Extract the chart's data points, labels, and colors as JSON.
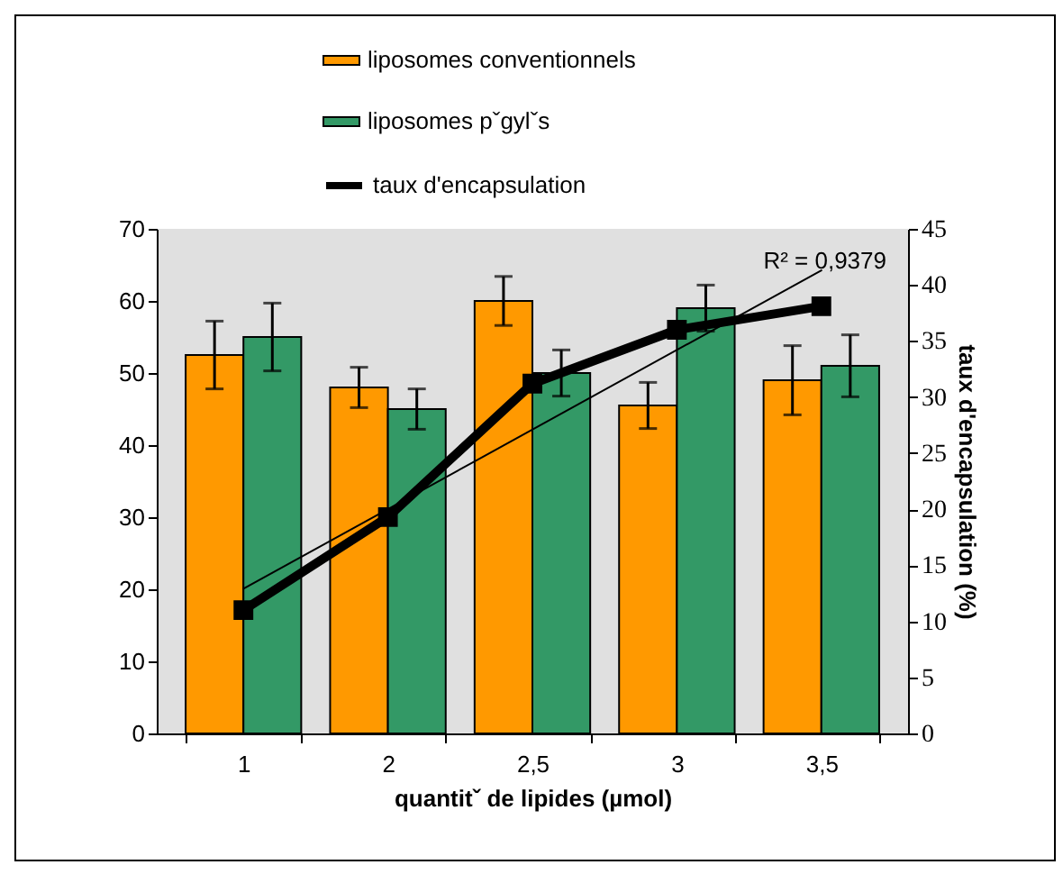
{
  "chart_data": {
    "type": "bar",
    "xlabel": "quantitˇ de lipides (µmol)",
    "y2label": "taux d'encapsulation (%)",
    "categories": [
      "1",
      "2",
      "2,5",
      "3",
      "3,5"
    ],
    "series": [
      {
        "name": "liposomes conventionnels",
        "color": "#ff9900",
        "values": [
          52.5,
          48,
          60,
          45.5,
          49
        ],
        "errors": [
          4.7,
          2.8,
          3.4,
          3.2,
          4.8
        ]
      },
      {
        "name": "liposomes pˇgylˇs",
        "color": "#339966",
        "values": [
          55,
          45,
          50,
          59,
          51
        ],
        "errors": [
          4.7,
          2.8,
          3.2,
          3.2,
          4.3
        ]
      },
      {
        "name": "taux d'encapsulation",
        "type": "line",
        "axis": "y2",
        "color": "#000000",
        "marker": "square",
        "values": [
          11,
          19.3,
          31.2,
          36,
          38.1
        ]
      },
      {
        "type": "line",
        "axis": "y2",
        "color": "#000000",
        "x": [
          "1",
          "3,5"
        ],
        "values": [
          12.9,
          41.3
        ]
      }
    ],
    "ylim": [
      0,
      70
    ],
    "yticks": [
      0,
      10,
      20,
      30,
      40,
      50,
      60,
      70
    ],
    "y2lim": [
      0,
      45
    ],
    "y2ticks": [
      0,
      5,
      10,
      15,
      20,
      25,
      30,
      35,
      40,
      45
    ],
    "legend": "top",
    "annotations": [
      "R² = 0,9379"
    ]
  }
}
